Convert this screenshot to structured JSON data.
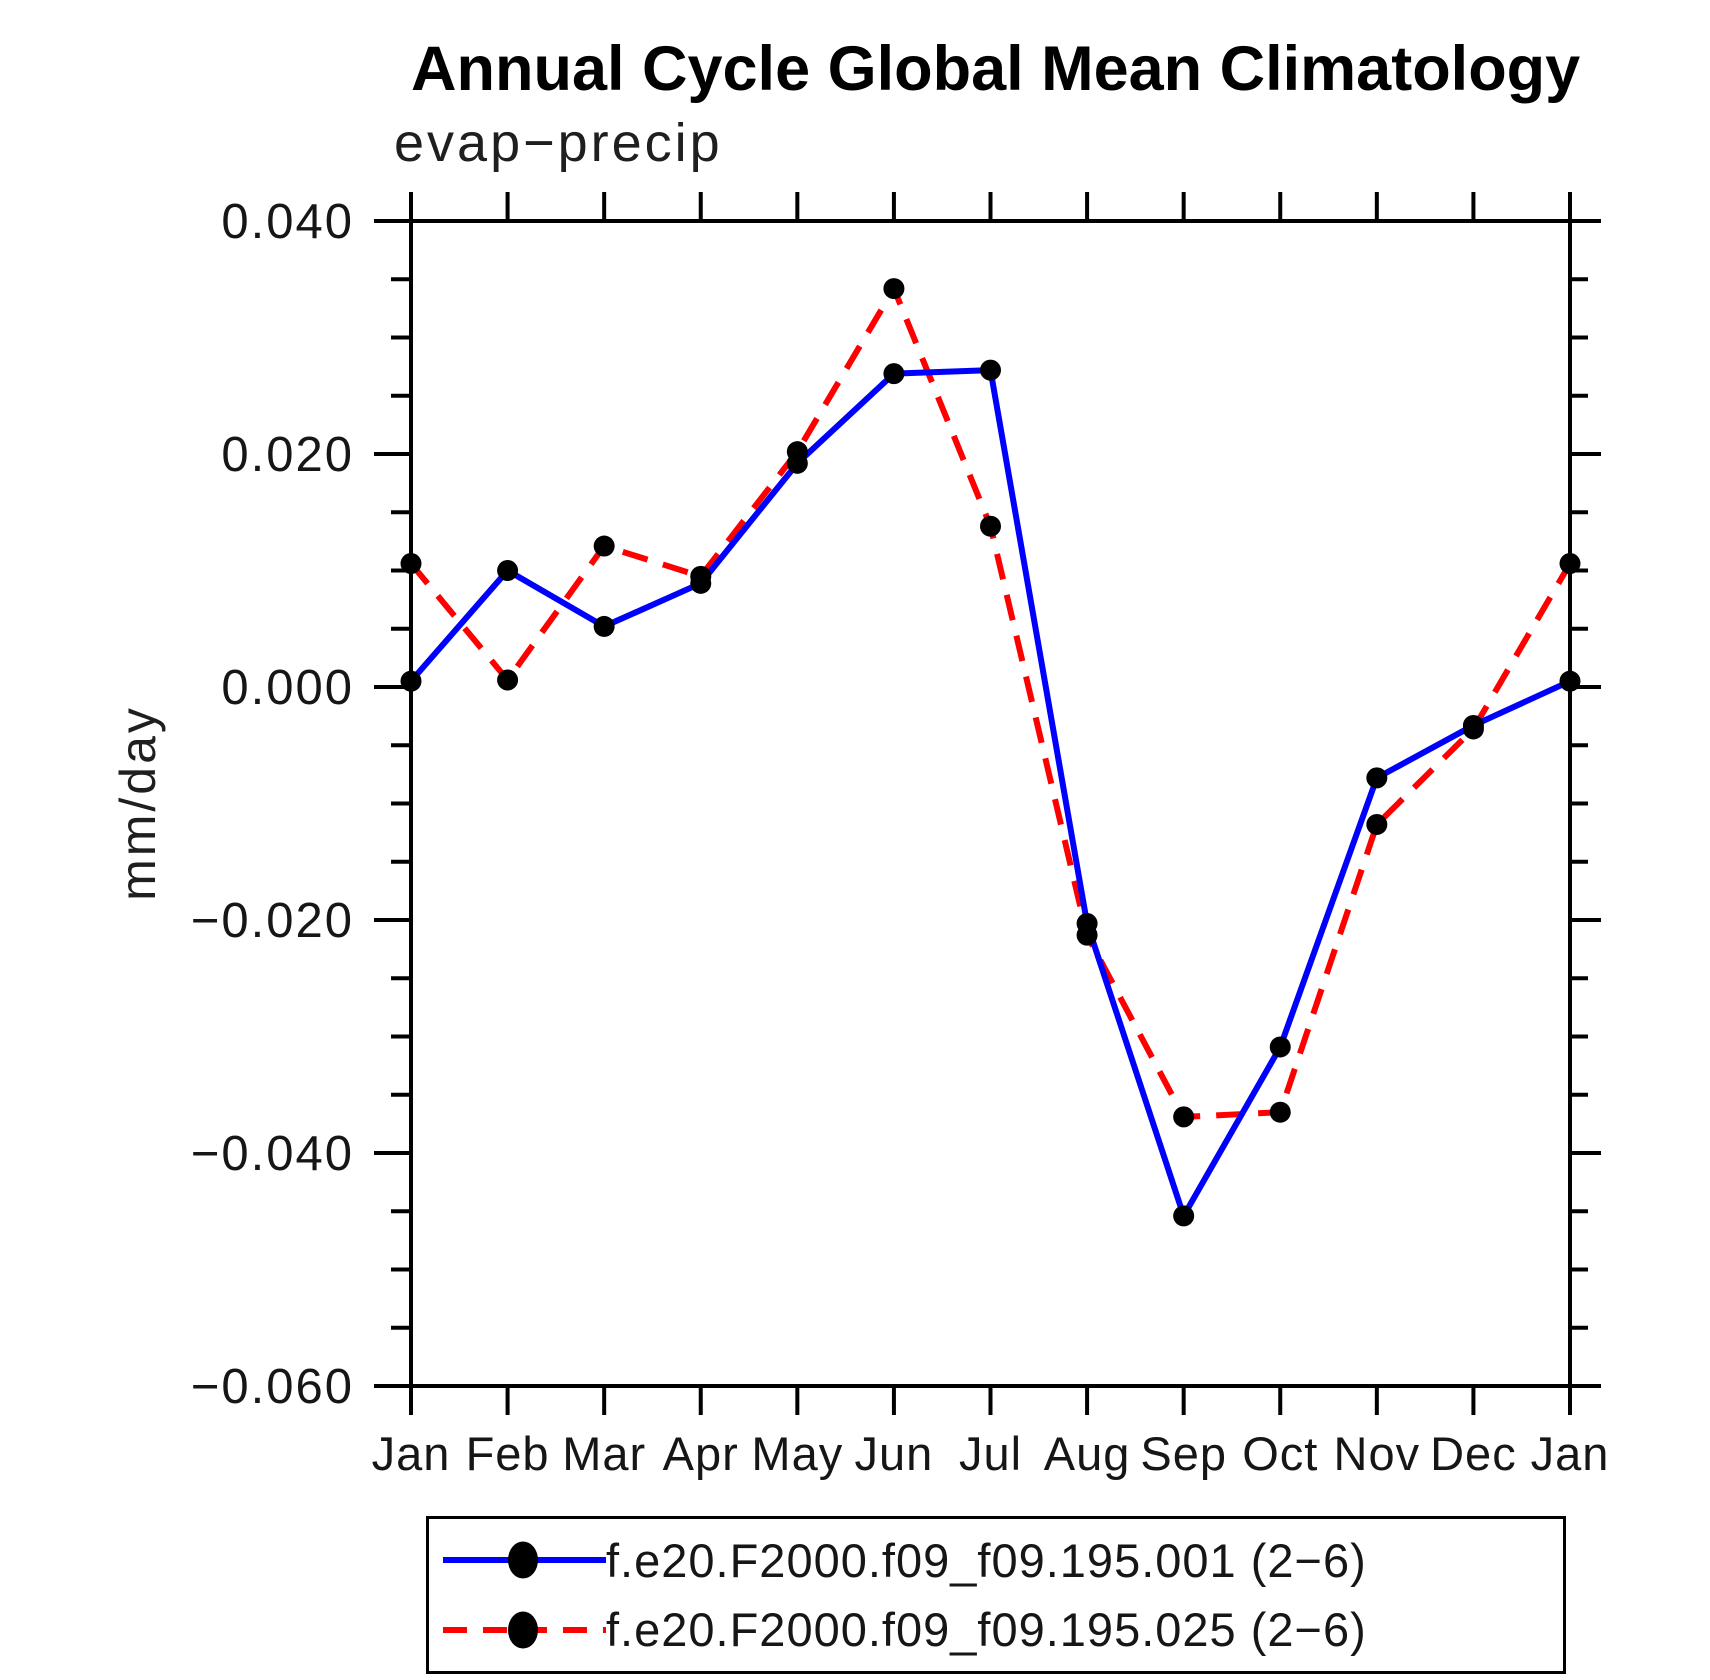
{
  "chart_data": {
    "type": "line",
    "title": "Annual Cycle Global Mean Climatology",
    "subtitle": "evap−precip",
    "ylabel": "mm/day",
    "categories": [
      "Jan",
      "Feb",
      "Mar",
      "Apr",
      "May",
      "Jun",
      "Jul",
      "Aug",
      "Sep",
      "Oct",
      "Nov",
      "Dec",
      "Jan"
    ],
    "ylim": [
      -0.06,
      0.04
    ],
    "ytick_major_step": 0.02,
    "ytick_minor_step": 0.005,
    "ytick_labels": [
      "0.040",
      "0.020",
      "0.000",
      "−0.020",
      "−0.040",
      "−0.060"
    ],
    "grid": false,
    "legend_position": "bottom",
    "axis_color": "#000000",
    "marker": {
      "shape": "circle",
      "color": "#000000"
    },
    "series": [
      {
        "name": "f.e20.F2000.f09_f09.195.001 (2−6)",
        "color": "#0000ff",
        "line_style": "solid",
        "values": [
          0.0005,
          0.01,
          0.0052,
          0.0089,
          0.0192,
          0.0269,
          0.0272,
          -0.0203,
          -0.0454,
          -0.0309,
          -0.0078,
          -0.0033,
          0.0005
        ]
      },
      {
        "name": "f.e20.F2000.f09_f09.195.025 (2−6)",
        "color": "#ff0000",
        "line_style": "dashed",
        "values": [
          0.0106,
          0.0006,
          0.0121,
          0.0095,
          0.0202,
          0.0342,
          0.0138,
          -0.0213,
          -0.0369,
          -0.0365,
          -0.0118,
          -0.0036,
          0.0106
        ]
      }
    ]
  }
}
